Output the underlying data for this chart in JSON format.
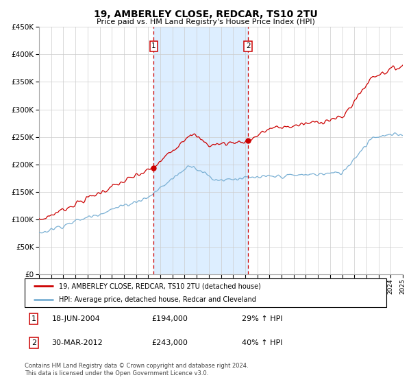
{
  "title": "19, AMBERLEY CLOSE, REDCAR, TS10 2TU",
  "subtitle": "Price paid vs. HM Land Registry's House Price Index (HPI)",
  "xlim": [
    1995,
    2025
  ],
  "ylim": [
    0,
    450000
  ],
  "yticks": [
    0,
    50000,
    100000,
    150000,
    200000,
    250000,
    300000,
    350000,
    400000,
    450000
  ],
  "sale1_date": 2004.46,
  "sale1_price": 194000,
  "sale1_label": "18-JUN-2004",
  "sale1_price_str": "£194,000",
  "sale1_pct": "29% ↑ HPI",
  "sale2_date": 2012.24,
  "sale2_price": 243000,
  "sale2_label": "30-MAR-2012",
  "sale2_price_str": "£243,000",
  "sale2_pct": "40% ↑ HPI",
  "red_color": "#cc0000",
  "blue_color": "#7ab0d4",
  "shade_color": "#ddeeff",
  "grid_color": "#cccccc",
  "background_color": "#ffffff",
  "legend_line1": "19, AMBERLEY CLOSE, REDCAR, TS10 2TU (detached house)",
  "legend_line2": "HPI: Average price, detached house, Redcar and Cleveland",
  "footnote": "Contains HM Land Registry data © Crown copyright and database right 2024.\nThis data is licensed under the Open Government Licence v3.0."
}
